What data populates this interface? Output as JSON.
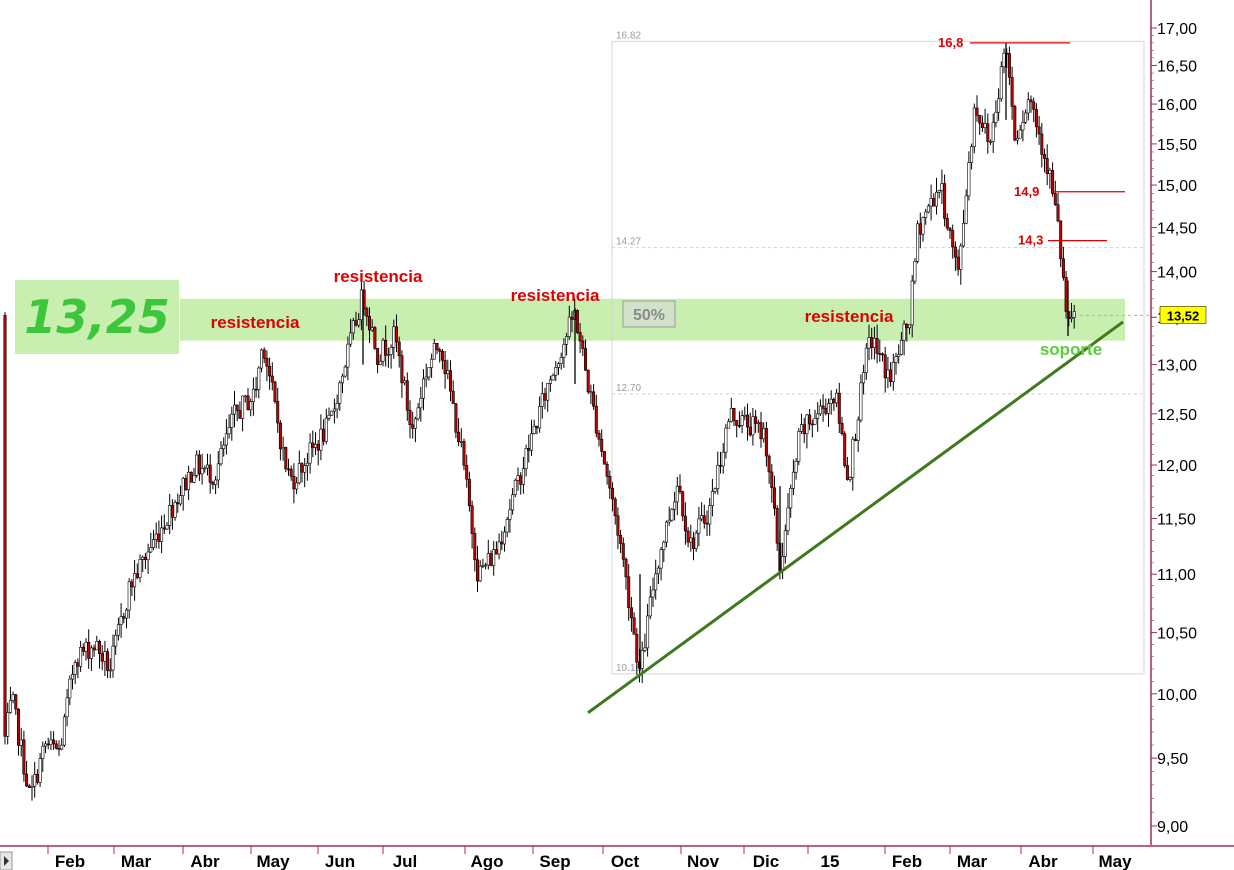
{
  "chart_data": {
    "type": "candlestick",
    "y_axis": {
      "ylim": [
        8.85,
        17.2
      ],
      "ticks": [
        "17,00",
        "16,50",
        "16,00",
        "15,50",
        "15,00",
        "14,50",
        "14,00",
        "13,50",
        "13,00",
        "12,50",
        "12,00",
        "11,50",
        "11,00",
        "10,50",
        "10,00",
        "9,50",
        "9,00"
      ]
    },
    "x_axis": {
      "labels": [
        "Feb",
        "Mar",
        "Abr",
        "May",
        "Jun",
        "Jul",
        "Ago",
        "Sep",
        "Oct",
        "Nov",
        "Dic",
        "15",
        "Feb",
        "Mar",
        "Abr",
        "May"
      ]
    },
    "price_path": [
      [
        "Ene-2014",
        9.65
      ],
      [
        "Ene-2014",
        9.95
      ],
      [
        "Ene-2014",
        9.2
      ],
      [
        "Ene-2014",
        9.6
      ],
      [
        "Feb",
        9.55
      ],
      [
        "Feb",
        10.3
      ],
      [
        "Feb",
        10.4
      ],
      [
        "Feb",
        10.2
      ],
      [
        "Mar",
        10.9
      ],
      [
        "Mar",
        11.4
      ],
      [
        "Abr",
        12.0
      ],
      [
        "Abr",
        11.9
      ],
      [
        "Abr",
        12.5
      ],
      [
        "May",
        12.7
      ],
      [
        "May",
        13.25
      ],
      [
        "May",
        12.0
      ],
      [
        "May",
        11.85
      ],
      [
        "Jun",
        12.4
      ],
      [
        "Jun",
        13.75
      ],
      [
        "Jun",
        13.1
      ],
      [
        "Jul",
        13.3
      ],
      [
        "Jul",
        12.3
      ],
      [
        "Jul",
        12.9
      ],
      [
        "Ago",
        13.25
      ],
      [
        "Ago",
        12.1
      ],
      [
        "Ago",
        11.0
      ],
      [
        "Ago",
        11.2
      ],
      [
        "Sep",
        11.9
      ],
      [
        "Sep",
        12.85
      ],
      [
        "Sep",
        13.55
      ],
      [
        "Sep",
        12.8
      ],
      [
        "Oct",
        12.0
      ],
      [
        "Oct",
        11.3
      ],
      [
        "Oct",
        10.15
      ],
      [
        "Oct",
        11.0
      ],
      [
        "Nov",
        11.85
      ],
      [
        "Nov",
        11.25
      ],
      [
        "Nov",
        11.6
      ],
      [
        "Nov",
        12.5
      ],
      [
        "Dic",
        12.3
      ],
      [
        "Dic",
        11.05
      ],
      [
        "Dic",
        12.3
      ],
      [
        "Dic",
        12.7
      ],
      [
        "Dic",
        12.4
      ],
      [
        "15",
        11.85
      ],
      [
        "15",
        13.3
      ],
      [
        "15",
        12.85
      ],
      [
        "Feb",
        13.5
      ],
      [
        "Feb",
        14.5
      ],
      [
        "Feb",
        15.0
      ],
      [
        "Mar",
        13.95
      ],
      [
        "Mar",
        16.0
      ],
      [
        "Mar",
        15.5
      ],
      [
        "Mar",
        16.8
      ],
      [
        "Abr",
        15.6
      ],
      [
        "Abr",
        16.1
      ],
      [
        "Abr",
        15.1
      ],
      [
        "Abr",
        14.5
      ],
      [
        "Abr",
        13.35
      ],
      [
        "Abr",
        13.52
      ]
    ],
    "last_price": "13,52",
    "resistance_zone": [
      13.25,
      13.7
    ],
    "resistance_level_label": "13,25",
    "fibonacci": {
      "levels": [
        {
          "label": "16.82",
          "value": 16.82
        },
        {
          "label": "14.27",
          "value": 14.27
        },
        {
          "label": "12.70",
          "value": 12.7
        },
        {
          "label": "10.16",
          "value": 10.16
        }
      ],
      "retracement_tag": "50%"
    },
    "support_trendline": {
      "from": [
        "Sep",
        9.85
      ],
      "to": [
        "Abr",
        13.45
      ]
    },
    "horizontal_marks": [
      {
        "label": "16,8",
        "value": 16.8
      },
      {
        "label": "14,9",
        "value": 14.92
      },
      {
        "label": "14,3",
        "value": 14.35
      }
    ],
    "annotations": [
      {
        "text": "resistencia"
      },
      {
        "text": "resistencia"
      },
      {
        "text": "resistencia"
      },
      {
        "text": "resistencia"
      },
      {
        "text": "soporte"
      }
    ]
  },
  "colors": {
    "zone": "#c8efb0",
    "trendline": "#3e7a1d",
    "annotation_red": "#e00000",
    "annotation_green": "#5ccc3c",
    "candle_up": "#ffffff",
    "candle_down": "#c00000",
    "wick": "#000000",
    "axis_line": "#a03050",
    "price_tag": "#ffff00"
  }
}
